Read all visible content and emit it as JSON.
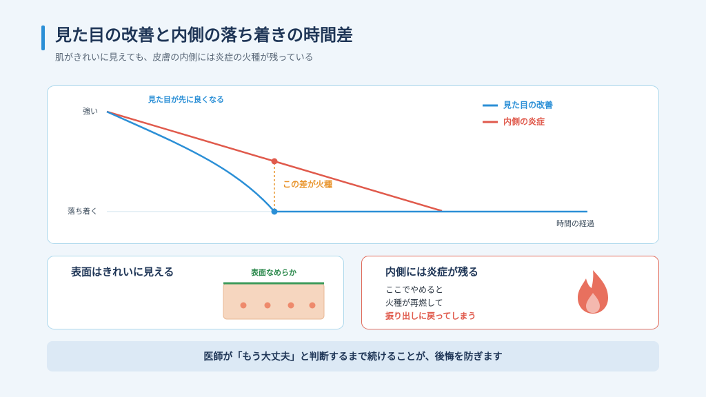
{
  "header": {
    "title": "見た目の改善と内側の落ち着きの時間差",
    "subtitle": "肌がきれいに見えても、皮膚の内側には炎症の火種が残っている"
  },
  "diagram": {
    "y_labels": [
      "強い",
      "落ち着く"
    ],
    "annotation": "見た目が先に良くなる",
    "gap_label": "この差が火種",
    "x_label": "時間の経過",
    "legend": [
      {
        "name": "見た目の改善",
        "color": "#2b8fd6"
      },
      {
        "name": "内側の炎症",
        "color": "#e05a4c"
      }
    ]
  },
  "cards": [
    {
      "title": "表面はきれいに見える",
      "label": "表面なめらか"
    },
    {
      "title": "内側には炎症が残る",
      "lines": [
        "ここでやめると",
        "火種が再燃して",
        "振り出しに戻ってしまう"
      ]
    }
  ],
  "footer": "医師が「もう大丈夫」と判断するまで続けることが、後悔を防ぎます"
}
